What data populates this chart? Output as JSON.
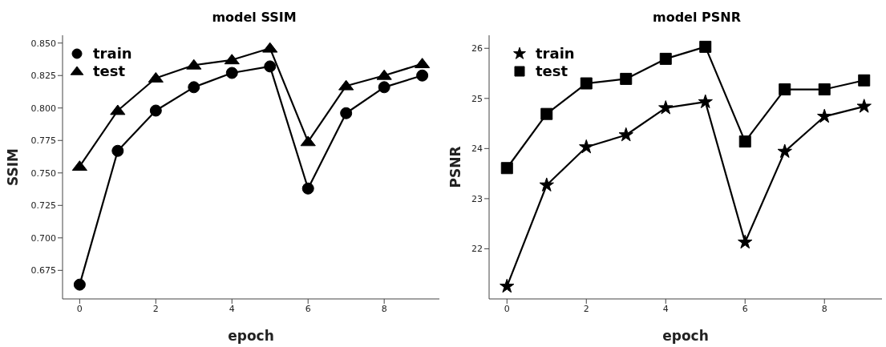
{
  "chart_data": [
    {
      "type": "line",
      "title": "model SSIM",
      "xlabel": "epoch",
      "ylabel": "SSIM",
      "x": [
        0,
        1,
        2,
        3,
        4,
        5,
        6,
        7,
        8,
        9
      ],
      "xlim": [
        -0.45,
        9.45
      ],
      "xticks": [
        0,
        2,
        4,
        6,
        8
      ],
      "ylim": [
        0.653,
        0.856
      ],
      "yticks": [
        0.675,
        {
          "value": 0.7,
          "label": "0.700"
        },
        0.725,
        {
          "value": 0.75,
          "label": "0.750"
        },
        0.775,
        {
          "value": 0.8,
          "label": "0.800"
        },
        0.825,
        {
          "value": 0.85,
          "label": "0.850"
        }
      ],
      "legend": "top left",
      "grid": false,
      "line_style": "solid",
      "series": [
        {
          "name": "train",
          "color": "#000000",
          "marker": "circle",
          "values": [
            0.664,
            0.767,
            0.798,
            0.816,
            0.827,
            0.832,
            0.738,
            0.796,
            0.816,
            0.825
          ]
        },
        {
          "name": "test",
          "color": "#000000",
          "marker": "triangle",
          "values": [
            0.755,
            0.798,
            0.823,
            0.833,
            0.837,
            0.846,
            0.774,
            0.817,
            0.825,
            0.834
          ]
        }
      ]
    },
    {
      "type": "line",
      "title": "model PSNR",
      "xlabel": "epoch",
      "ylabel": "PSNR",
      "x": [
        0,
        1,
        2,
        3,
        4,
        5,
        6,
        7,
        8,
        9
      ],
      "xlim": [
        -0.45,
        9.45
      ],
      "xticks": [
        0,
        2,
        4,
        6,
        8
      ],
      "ylim": [
        21.0,
        26.26
      ],
      "yticks": [
        22,
        23,
        24,
        25,
        26
      ],
      "legend": "top left",
      "grid": false,
      "line_style": "solid",
      "series": [
        {
          "name": "train",
          "color": "#000000",
          "marker": "star",
          "values": [
            21.25,
            23.27,
            24.03,
            24.27,
            24.81,
            24.93,
            22.13,
            23.94,
            24.64,
            24.84
          ]
        },
        {
          "name": "test",
          "color": "#000000",
          "marker": "square",
          "values": [
            23.61,
            24.69,
            25.3,
            25.39,
            25.79,
            26.03,
            24.14,
            25.18,
            25.18,
            25.36
          ]
        }
      ]
    }
  ]
}
